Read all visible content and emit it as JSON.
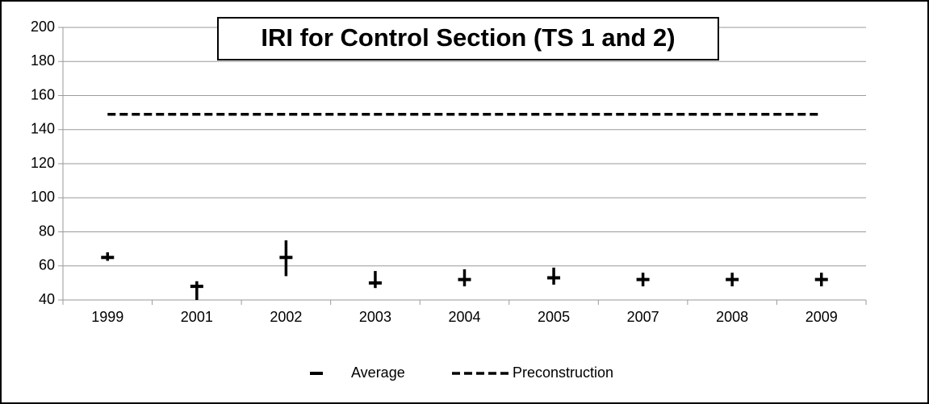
{
  "chart_data": {
    "type": "errorbar",
    "title": "IRI for Control Section (TS 1 and 2)",
    "categories": [
      "1999",
      "2001",
      "2002",
      "2003",
      "2004",
      "2005",
      "2007",
      "2008",
      "2009"
    ],
    "series": [
      {
        "name": "Average",
        "color": "#000000",
        "values": [
          65,
          48,
          65,
          50,
          52,
          53,
          52,
          52,
          52
        ],
        "high": [
          68,
          51,
          75,
          57,
          58,
          59,
          56,
          56,
          56
        ],
        "low": [
          63,
          40,
          54,
          47,
          48,
          49,
          48,
          48,
          48
        ]
      },
      {
        "name": "Preconstruction",
        "color": "#000000",
        "dashed": true,
        "values": [
          149,
          149,
          149,
          149,
          149,
          149,
          149,
          149,
          149
        ]
      }
    ],
    "ylim": [
      40,
      200
    ],
    "yticks": [
      40,
      60,
      80,
      100,
      120,
      140,
      160,
      180,
      200
    ],
    "grid": true,
    "legend": "bottom"
  }
}
